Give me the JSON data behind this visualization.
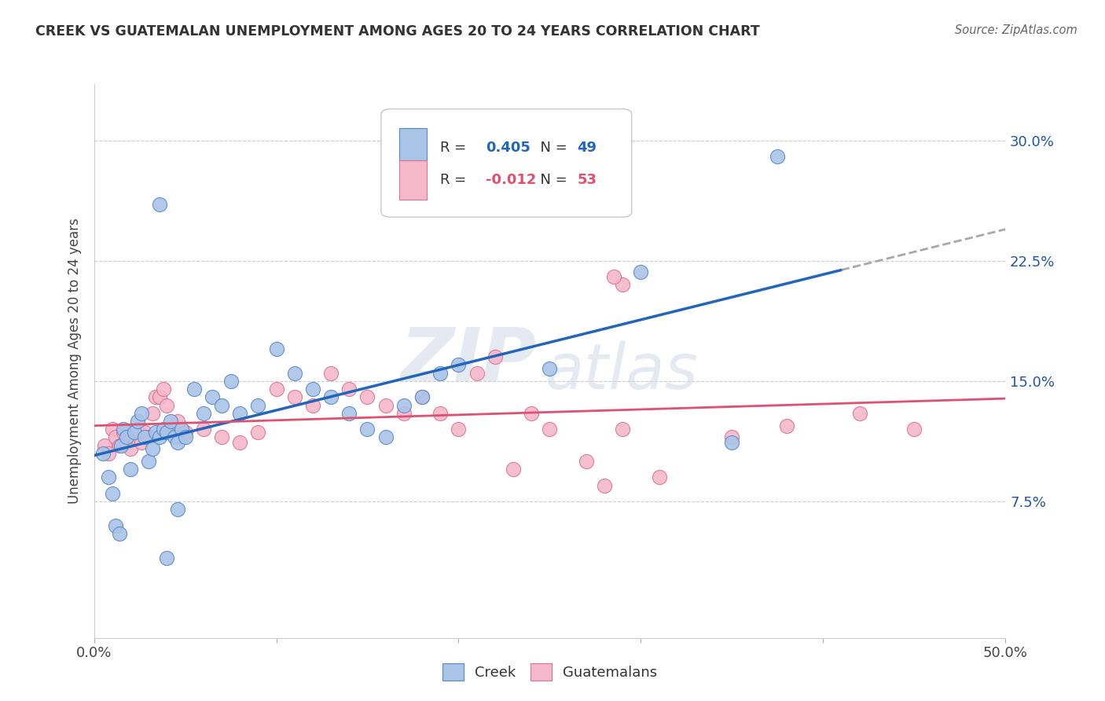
{
  "title": "CREEK VS GUATEMALAN UNEMPLOYMENT AMONG AGES 20 TO 24 YEARS CORRELATION CHART",
  "source": "Source: ZipAtlas.com",
  "ylabel": "Unemployment Among Ages 20 to 24 years",
  "xlim": [
    0.0,
    0.5
  ],
  "ylim": [
    -0.01,
    0.335
  ],
  "creek_R": 0.405,
  "creek_N": 49,
  "guate_R": -0.012,
  "guate_N": 53,
  "creek_face_color": "#aac4e8",
  "creek_edge_color": "#5588cc",
  "guate_face_color": "#f5b8cb",
  "guate_edge_color": "#e07090",
  "creek_line_color": "#2266bb",
  "guate_line_color": "#e05070",
  "ytick_positions": [
    0.075,
    0.15,
    0.225,
    0.3
  ],
  "yticklabels": [
    "7.5%",
    "15.0%",
    "22.5%",
    "30.0%"
  ],
  "legend_R1": "0.405",
  "legend_N1": "49",
  "legend_R2": "-0.012",
  "legend_N2": "53",
  "legend_text_color": "#333333",
  "legend_value_color1": "#2266bb",
  "legend_value_color2": "#e05070",
  "watermark_color": "#d0d8e8",
  "grid_color": "#cccccc",
  "creek_x": [
    0.005,
    0.008,
    0.01,
    0.012,
    0.014,
    0.015,
    0.016,
    0.018,
    0.02,
    0.022,
    0.024,
    0.026,
    0.028,
    0.03,
    0.032,
    0.034,
    0.036,
    0.038,
    0.04,
    0.042,
    0.044,
    0.046,
    0.048,
    0.05,
    0.055,
    0.06,
    0.065,
    0.07,
    0.075,
    0.08,
    0.09,
    0.1,
    0.11,
    0.12,
    0.13,
    0.14,
    0.15,
    0.16,
    0.17,
    0.18,
    0.19,
    0.2,
    0.25,
    0.3,
    0.35,
    0.036,
    0.04,
    0.375,
    0.046
  ],
  "creek_y": [
    0.105,
    0.09,
    0.08,
    0.06,
    0.055,
    0.11,
    0.12,
    0.115,
    0.095,
    0.118,
    0.125,
    0.13,
    0.115,
    0.1,
    0.108,
    0.118,
    0.115,
    0.12,
    0.118,
    0.125,
    0.115,
    0.112,
    0.12,
    0.115,
    0.145,
    0.13,
    0.14,
    0.135,
    0.15,
    0.13,
    0.135,
    0.17,
    0.155,
    0.145,
    0.14,
    0.13,
    0.12,
    0.115,
    0.135,
    0.14,
    0.155,
    0.16,
    0.158,
    0.218,
    0.112,
    0.26,
    0.04,
    0.29,
    0.07
  ],
  "guate_x": [
    0.006,
    0.008,
    0.01,
    0.012,
    0.014,
    0.016,
    0.018,
    0.02,
    0.022,
    0.024,
    0.026,
    0.028,
    0.03,
    0.032,
    0.034,
    0.036,
    0.038,
    0.04,
    0.042,
    0.044,
    0.046,
    0.048,
    0.05,
    0.06,
    0.07,
    0.08,
    0.09,
    0.1,
    0.11,
    0.12,
    0.13,
    0.14,
    0.15,
    0.16,
    0.17,
    0.18,
    0.19,
    0.2,
    0.21,
    0.22,
    0.23,
    0.24,
    0.25,
    0.27,
    0.28,
    0.29,
    0.31,
    0.35,
    0.38,
    0.42,
    0.45,
    0.29,
    0.285
  ],
  "guate_y": [
    0.11,
    0.105,
    0.12,
    0.115,
    0.11,
    0.118,
    0.112,
    0.108,
    0.115,
    0.12,
    0.112,
    0.118,
    0.115,
    0.13,
    0.14,
    0.14,
    0.145,
    0.135,
    0.12,
    0.118,
    0.125,
    0.115,
    0.118,
    0.12,
    0.115,
    0.112,
    0.118,
    0.145,
    0.14,
    0.135,
    0.155,
    0.145,
    0.14,
    0.135,
    0.13,
    0.14,
    0.13,
    0.12,
    0.155,
    0.165,
    0.095,
    0.13,
    0.12,
    0.1,
    0.085,
    0.12,
    0.09,
    0.115,
    0.122,
    0.13,
    0.12,
    0.21,
    0.215
  ]
}
